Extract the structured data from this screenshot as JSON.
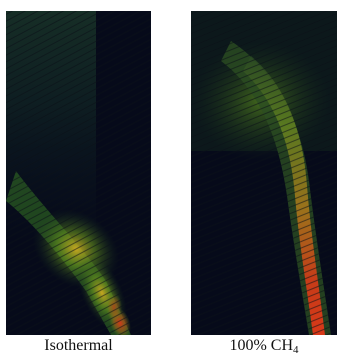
{
  "panels": [
    {
      "caption": "Isothermal",
      "colors": {
        "background": "#060a1a",
        "low": "#1a3a20",
        "mid": "#6a9a1c",
        "high": "#d03a18"
      }
    },
    {
      "caption_main": "100% CH",
      "caption_sub": "4",
      "colors": {
        "background": "#060a1a",
        "low": "#1a3a20",
        "mid": "#6a9a1c",
        "high": "#d03a18"
      }
    }
  ]
}
